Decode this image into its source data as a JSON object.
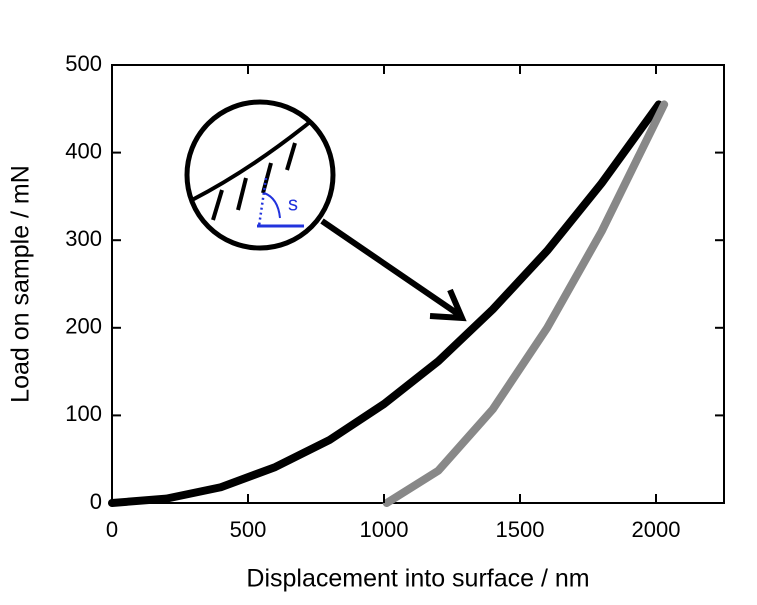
{
  "chart_data": {
    "type": "line",
    "x_label": "Displacement into surface / nm",
    "y_label": "Load on sample / mN",
    "series": [
      {
        "color": "#000000",
        "x": [
          0,
          200,
          400,
          600,
          800,
          1000,
          1200,
          1400,
          1600,
          1800,
          2010
        ],
        "values": [
          0,
          5,
          18,
          41,
          72,
          113,
          162,
          221,
          288,
          365,
          455
        ]
      },
      {
        "color": "#888888",
        "x": [
          1010,
          1200,
          1400,
          1600,
          1800,
          2030
        ],
        "values": [
          0,
          37,
          107,
          200,
          310,
          455
        ]
      }
    ],
    "xlim": [
      0,
      2250
    ],
    "ylim": [
      0,
      500
    ],
    "xticks": [
      0,
      500,
      1000,
      1500,
      2000
    ],
    "yticks": [
      0,
      100,
      200,
      300,
      400,
      500
    ],
    "inset_label": "s"
  }
}
